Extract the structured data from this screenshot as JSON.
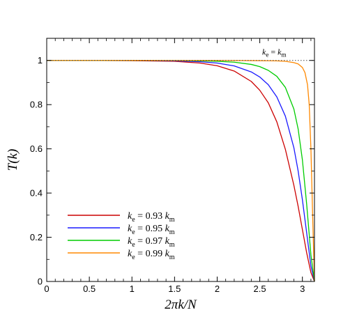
{
  "chart_data": {
    "type": "line",
    "xlabel": "2πk/N",
    "ylabel": "T(k)",
    "xlim": [
      0,
      3.1416
    ],
    "ylim": [
      0,
      1.1
    ],
    "xticks": [
      0,
      0.5,
      1,
      1.5,
      2,
      2.5,
      3
    ],
    "xtick_labels": [
      "0",
      "0.5",
      "1",
      "1.5",
      "2",
      "2.5",
      "3"
    ],
    "yticks": [
      0,
      0.2,
      0.4,
      0.6,
      0.8,
      1
    ],
    "ytick_labels": [
      "0",
      "0.2",
      "0.4",
      "0.6",
      "0.8",
      "1"
    ],
    "grid": false,
    "legend_position": "bottom-left",
    "reference_line": {
      "y": 1,
      "style": "dotted",
      "label_sym1": "k",
      "label_sub1": "e",
      "label_eq": " = ",
      "label_sym2": "k",
      "label_sub2": "m"
    },
    "series": [
      {
        "name": "k_e = 0.93 k_m",
        "legend_sym": "k",
        "legend_sub": "e",
        "legend_mid": " = 0.93 ",
        "legend_sym2": "k",
        "legend_sub2": "m",
        "color": "#cc0000",
        "x": [
          0,
          0.5,
          1.0,
          1.5,
          1.8,
          2.0,
          2.2,
          2.4,
          2.5,
          2.6,
          2.7,
          2.8,
          2.9,
          2.95,
          3.0,
          3.05,
          3.1,
          3.1416
        ],
        "y": [
          1.0,
          1.0,
          0.999,
          0.996,
          0.988,
          0.976,
          0.952,
          0.905,
          0.865,
          0.808,
          0.722,
          0.598,
          0.435,
          0.34,
          0.235,
          0.13,
          0.04,
          0.0
        ]
      },
      {
        "name": "k_e = 0.95 k_m",
        "legend_sym": "k",
        "legend_sub": "e",
        "legend_mid": " = 0.95 ",
        "legend_sym2": "k",
        "legend_sub2": "m",
        "color": "#1a1aff",
        "x": [
          0,
          0.5,
          1.0,
          1.5,
          1.8,
          2.0,
          2.2,
          2.4,
          2.5,
          2.6,
          2.7,
          2.8,
          2.9,
          2.95,
          3.0,
          3.05,
          3.1,
          3.1416
        ],
        "y": [
          1.0,
          1.0,
          1.0,
          0.998,
          0.994,
          0.988,
          0.975,
          0.948,
          0.925,
          0.89,
          0.835,
          0.748,
          0.605,
          0.5,
          0.37,
          0.22,
          0.07,
          0.0
        ]
      },
      {
        "name": "k_e = 0.97 k_m",
        "legend_sym": "k",
        "legend_sub": "e",
        "legend_mid": " = 0.97 ",
        "legend_sym2": "k",
        "legend_sub2": "m",
        "color": "#00cc00",
        "x": [
          0,
          0.5,
          1.0,
          1.5,
          1.8,
          2.0,
          2.2,
          2.4,
          2.5,
          2.6,
          2.7,
          2.8,
          2.9,
          2.95,
          3.0,
          3.05,
          3.1,
          3.1416
        ],
        "y": [
          1.0,
          1.0,
          1.0,
          1.0,
          0.998,
          0.996,
          0.992,
          0.982,
          0.972,
          0.955,
          0.928,
          0.878,
          0.78,
          0.69,
          0.55,
          0.35,
          0.12,
          0.0
        ]
      },
      {
        "name": "k_e = 0.99 k_m",
        "legend_sym": "k",
        "legend_sub": "e",
        "legend_mid": " = 0.99 ",
        "legend_sym2": "k",
        "legend_sub2": "m",
        "color": "#ff8800",
        "x": [
          0,
          0.5,
          1.0,
          1.5,
          2.0,
          2.5,
          2.7,
          2.8,
          2.9,
          2.95,
          3.0,
          3.03,
          3.06,
          3.08,
          3.1,
          3.12,
          3.1416
        ],
        "y": [
          1.0,
          1.0,
          1.0,
          1.0,
          1.0,
          0.999,
          0.998,
          0.996,
          0.99,
          0.984,
          0.968,
          0.945,
          0.89,
          0.8,
          0.6,
          0.3,
          0.0
        ]
      }
    ]
  }
}
